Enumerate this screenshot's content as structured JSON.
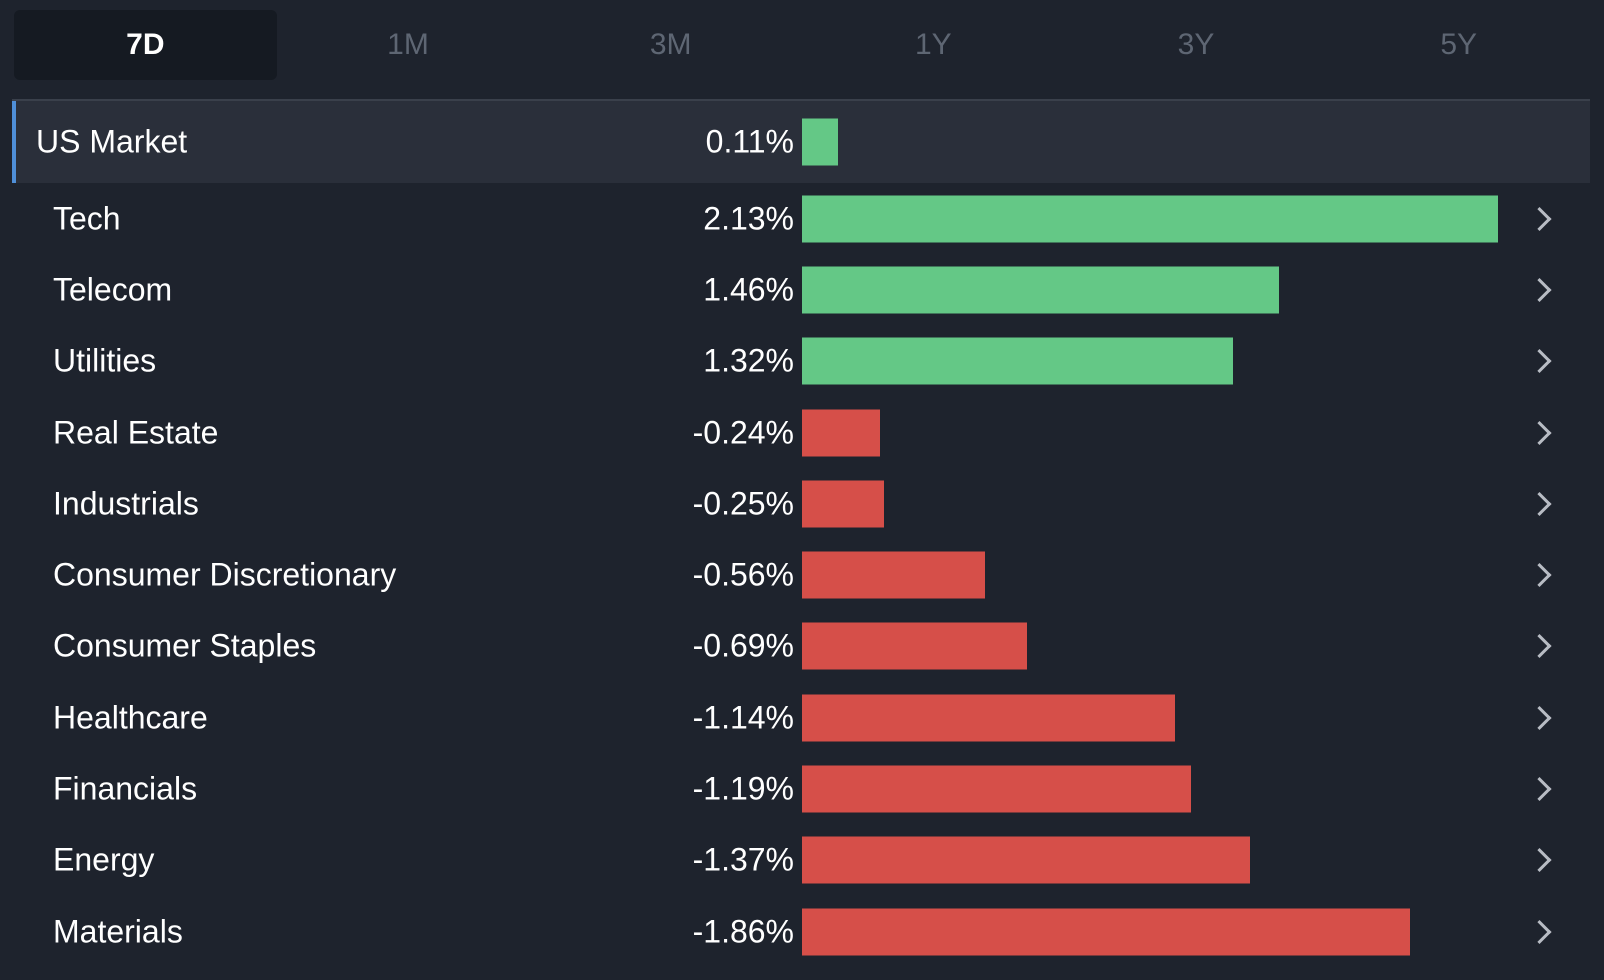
{
  "tabs": [
    {
      "label": "7D",
      "active": true
    },
    {
      "label": "1M",
      "active": false
    },
    {
      "label": "3M",
      "active": false
    },
    {
      "label": "1Y",
      "active": false
    },
    {
      "label": "3Y",
      "active": false
    },
    {
      "label": "5Y",
      "active": false
    }
  ],
  "colors": {
    "positive": "#64c886",
    "negative": "#d64f49",
    "accent": "#4f8fd8"
  },
  "chart_data": {
    "type": "bar",
    "categories": [
      "US Market",
      "Tech",
      "Telecom",
      "Utilities",
      "Real Estate",
      "Industrials",
      "Consumer Discretionary",
      "Consumer Staples",
      "Healthcare",
      "Financials",
      "Energy",
      "Materials"
    ],
    "values": [
      0.11,
      2.13,
      1.46,
      1.32,
      -0.24,
      -0.25,
      -0.56,
      -0.69,
      -1.14,
      -1.19,
      -1.37,
      -1.86
    ],
    "value_labels": [
      "0.11%",
      "2.13%",
      "1.46%",
      "1.32%",
      "-0.24%",
      "-0.25%",
      "-0.56%",
      "-0.69%",
      "-1.14%",
      "-1.19%",
      "-1.37%",
      "-1.86%"
    ],
    "highlighted_category": "US Market",
    "bar_magnitude": "absolute value",
    "grid": false,
    "legend": "none"
  },
  "row_action_icon": "chevron-right-icon"
}
